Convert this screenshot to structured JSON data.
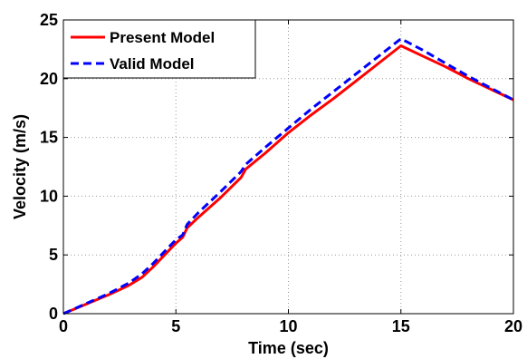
{
  "chart_data": {
    "type": "line",
    "title": "",
    "xlabel": "Time (sec)",
    "ylabel": "Velocity (m/s)",
    "xlim": [
      0,
      20
    ],
    "ylim": [
      0,
      25
    ],
    "xticks": [
      0,
      5,
      10,
      15,
      20
    ],
    "yticks": [
      0,
      5,
      10,
      15,
      20,
      25
    ],
    "grid": true,
    "legend_position": "top-left",
    "series": [
      {
        "name": "Present Model",
        "color": "#ff0000",
        "style": "solid",
        "x": [
          0,
          1,
          2,
          2.9,
          3.5,
          4,
          4.5,
          5,
          5.3,
          5.5,
          6,
          7,
          7.9,
          8.1,
          9,
          10,
          11,
          12,
          13,
          14,
          15,
          16,
          17,
          18,
          19,
          20
        ],
        "y": [
          0,
          0.8,
          1.6,
          2.4,
          3.1,
          4.0,
          5.0,
          6.0,
          6.5,
          7.3,
          8.2,
          9.9,
          11.6,
          12.3,
          13.7,
          15.4,
          16.9,
          18.3,
          19.8,
          21.3,
          22.8,
          21.9,
          21.0,
          20.0,
          19.1,
          18.2
        ]
      },
      {
        "name": "Valid Model",
        "color": "#0000ff",
        "style": "dashed",
        "x": [
          0,
          1,
          2,
          2.9,
          3.5,
          4,
          4.5,
          5,
          5.3,
          5.5,
          6,
          7,
          7.9,
          8.1,
          9,
          10,
          11,
          12,
          13,
          14,
          15,
          16,
          17,
          18,
          19,
          20
        ],
        "y": [
          0,
          0.85,
          1.7,
          2.6,
          3.4,
          4.3,
          5.3,
          6.3,
          6.7,
          7.6,
          8.6,
          10.4,
          12.1,
          12.7,
          14.2,
          15.8,
          17.4,
          18.9,
          20.4,
          21.9,
          23.4,
          22.4,
          21.3,
          20.2,
          19.2,
          18.2
        ]
      }
    ]
  }
}
